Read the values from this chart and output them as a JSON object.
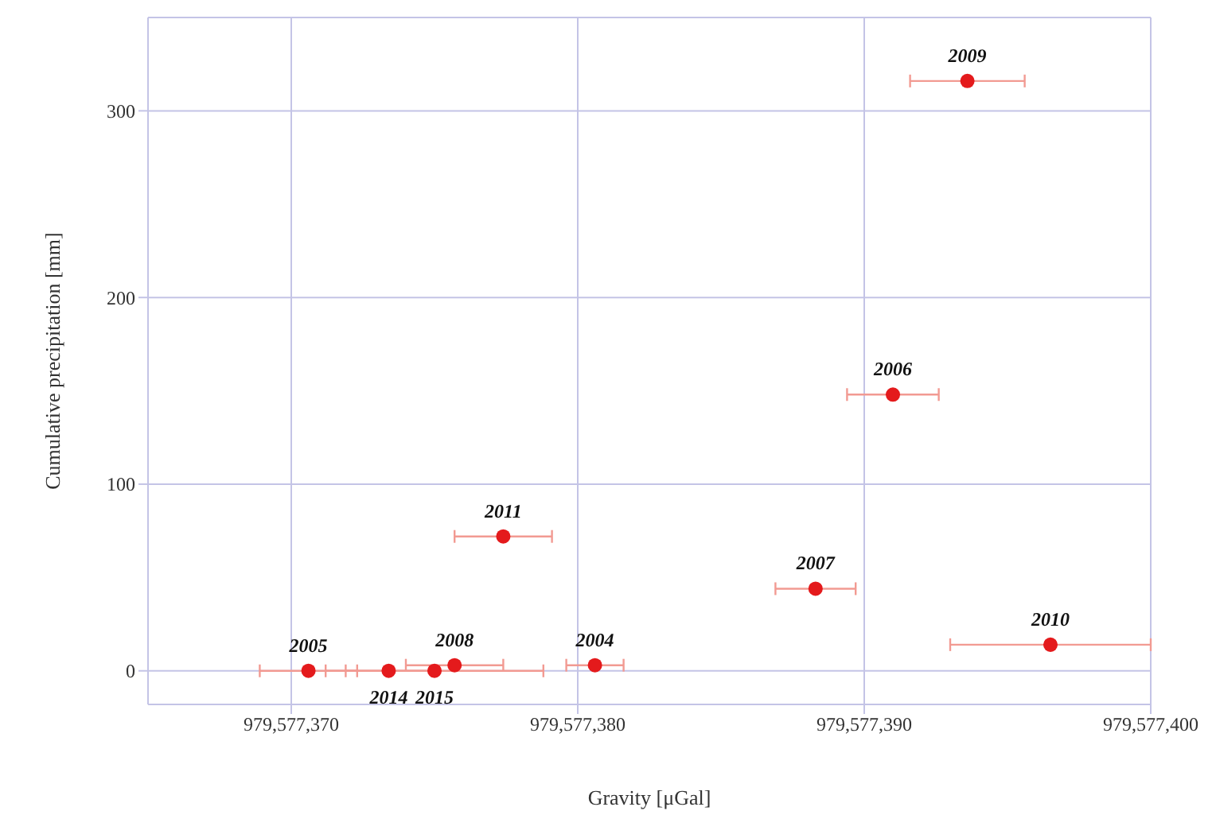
{
  "chart_data": {
    "type": "scatter",
    "xlabel": "Gravity [μGal]",
    "ylabel": "Cumulative precipitation [mm]",
    "x": [
      979577380.6,
      979577370.6,
      979577391.0,
      979577388.3,
      979577375.7,
      979577393.6,
      979577396.5,
      979577377.4,
      979577373.4,
      979577375.0
    ],
    "series": [
      {
        "color": "#e41a1c",
        "values": [
          3,
          0,
          148,
          44,
          3,
          316,
          14,
          72,
          0,
          0
        ],
        "xerrors": [
          1.0,
          1.7,
          1.6,
          1.4,
          1.7,
          2.0,
          3.5,
          1.7,
          1.5,
          3.8
        ]
      }
    ],
    "xlim": [
      979577365,
      979577400
    ],
    "ylim": [
      -18,
      350
    ],
    "xticks": [
      {
        "value": 979577370,
        "label": "979,577,370"
      },
      {
        "value": 979577380,
        "label": "979,577,380"
      },
      {
        "value": 979577390,
        "label": "979,577,390"
      },
      {
        "value": 979577400,
        "label": "979,577,400"
      }
    ],
    "yticks": [
      0,
      100,
      200,
      300
    ],
    "grid": true,
    "marker": "circle",
    "annotations": [
      {
        "text": "2004",
        "x": 979577380.6,
        "y": 3
      },
      {
        "text": "2005",
        "x": 979577370.6,
        "y": 0
      },
      {
        "text": "2006",
        "x": 979577391.0,
        "y": 148
      },
      {
        "text": "2007",
        "x": 979577388.3,
        "y": 44
      },
      {
        "text": "2008",
        "x": 979577375.7,
        "y": 3
      },
      {
        "text": "2009",
        "x": 979577393.6,
        "y": 316
      },
      {
        "text": "2010",
        "x": 979577396.5,
        "y": 14
      },
      {
        "text": "2011",
        "x": 979577377.4,
        "y": 72
      },
      {
        "text": "2014",
        "x": 979577373.4,
        "y": 0
      },
      {
        "text": "2015",
        "x": 979577375.0,
        "y": 0
      }
    ]
  }
}
